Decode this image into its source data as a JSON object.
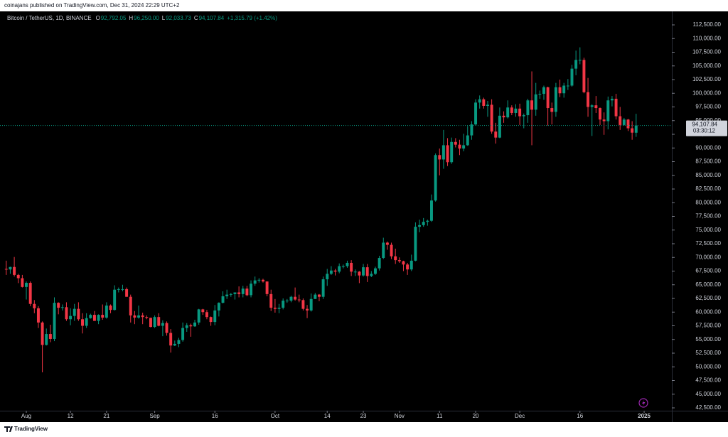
{
  "publisher": "coinajans published on TradingView.com, Dec 31, 2024 22:29 UTC+2",
  "legend": {
    "symbol": "Bitcoin / TetherUS, 1D, BINANCE",
    "items": [
      {
        "key": "O",
        "text": "92,792.05"
      },
      {
        "key": "H",
        "text": "96,250.00"
      },
      {
        "key": "L",
        "text": "92,033.73"
      },
      {
        "key": "C",
        "text": "94,107.84"
      }
    ],
    "change": "+1,315.79 (+1.42%)"
  },
  "footer": "TradingView",
  "chart_data": {
    "type": "candlestick",
    "up_color": "#089981",
    "down_color": "#f23645",
    "open": [
      67900,
      67800,
      68250,
      66800,
      66200,
      64600,
      65350,
      61500,
      60700,
      58100,
      54000,
      56000,
      55100,
      61700,
      60800,
      60900,
      58700,
      59300,
      60600,
      58700,
      57500,
      58900,
      59500,
      58400,
      59500,
      59000,
      61200,
      60400,
      64100,
      64200,
      64200,
      62800,
      59400,
      59000,
      59400,
      59100,
      58950,
      57300,
      59100,
      57500,
      58000,
      56200,
      53900,
      54200,
      54900,
      57100,
      57600,
      57400,
      58100,
      60500,
      60000,
      59100,
      58200,
      60300,
      61700,
      62900,
      63200,
      63300,
      63600,
      63300,
      64300,
      63100,
      65200,
      65800,
      65900,
      65600,
      63300,
      60800,
      60600,
      60800,
      62100,
      62100,
      62800,
      62300,
      62200,
      60600,
      60300,
      62400,
      63200,
      62800,
      66000,
      67000,
      67600,
      67400,
      68400,
      68400,
      69000,
      67400,
      67400,
      66700,
      68200,
      66600,
      67000,
      68000,
      69900,
      72700,
      72300,
      70200,
      69500,
      69300,
      68700,
      67800,
      69400,
      75600,
      75900,
      76500,
      76700,
      80400,
      88700,
      87900,
      90500,
      87400,
      91100,
      90600,
      89900,
      90500,
      92300,
      94300,
      98300,
      98900,
      97700,
      97900,
      93000,
      91900,
      95900,
      95600,
      97400,
      96400,
      97200,
      95800,
      96000,
      98700,
      97000,
      99800,
      99900,
      101100,
      97300,
      96600,
      101100,
      100000,
      101400,
      101400,
      104500,
      106100,
      106100,
      100200,
      97500,
      97800,
      97300,
      95200,
      94900,
      98700,
      99000,
      95800,
      94200,
      95200,
      93600,
      92792.05
    ],
    "high": [
      69400,
      68300,
      70080,
      67000,
      66800,
      65600,
      65600,
      62200,
      61100,
      58300,
      57000,
      57700,
      62700,
      61800,
      61400,
      61800,
      60700,
      61500,
      61800,
      59800,
      59800,
      59700,
      60200,
      59600,
      61400,
      61800,
      61400,
      64900,
      64500,
      65000,
      64500,
      63200,
      60200,
      61200,
      59900,
      59400,
      59000,
      59400,
      59800,
      58500,
      58300,
      56900,
      54800,
      55300,
      58100,
      58000,
      57900,
      58600,
      60600,
      60600,
      60400,
      59200,
      61300,
      61800,
      63800,
      64100,
      63500,
      63600,
      64700,
      64800,
      64800,
      65800,
      66500,
      66200,
      66100,
      65600,
      64100,
      62400,
      61500,
      62500,
      62400,
      63000,
      64500,
      63200,
      62500,
      61300,
      63400,
      63500,
      63300,
      66500,
      67900,
      68400,
      67900,
      68900,
      68700,
      69400,
      69500,
      67800,
      67500,
      68800,
      68800,
      67500,
      68300,
      70300,
      73600,
      72900,
      72700,
      71600,
      70000,
      69400,
      69000,
      70500,
      76400,
      76900,
      77200,
      76900,
      81500,
      89000,
      89900,
      93300,
      91800,
      91900,
      91800,
      91500,
      92600,
      94000,
      94900,
      98900,
      99600,
      99200,
      98600,
      98900,
      94600,
      97400,
      96700,
      98700,
      97800,
      98000,
      98100,
      96300,
      99000,
      104000,
      101900,
      100500,
      101400,
      101200,
      98300,
      101900,
      102500,
      101900,
      102600,
      105200,
      107800,
      108400,
      106500,
      102800,
      98000,
      99500,
      97400,
      96500,
      99400,
      99500,
      99900,
      97500,
      95500,
      95300,
      94900,
      96250
    ],
    "low": [
      66800,
      67000,
      66500,
      65300,
      64500,
      62300,
      61100,
      59800,
      57100,
      49000,
      53900,
      54500,
      54700,
      59600,
      60300,
      58400,
      57600,
      58400,
      58400,
      56100,
      57100,
      58800,
      58400,
      57800,
      58600,
      58800,
      59800,
      60300,
      63600,
      63800,
      62800,
      58100,
      57800,
      58800,
      57800,
      58700,
      57200,
      57100,
      57400,
      55600,
      55700,
      52600,
      53800,
      53600,
      54600,
      56400,
      55500,
      57300,
      57700,
      59500,
      58700,
      57500,
      57600,
      59200,
      61600,
      62400,
      62800,
      62300,
      62700,
      62700,
      62900,
      62700,
      64800,
      65400,
      65400,
      62900,
      60200,
      59900,
      59800,
      60500,
      61700,
      61800,
      62100,
      61800,
      60300,
      58900,
      60100,
      62400,
      62000,
      62400,
      64800,
      66800,
      66700,
      67100,
      68000,
      68100,
      66600,
      66600,
      65300,
      66500,
      65500,
      66400,
      66800,
      67600,
      69700,
      71400,
      69700,
      68800,
      69000,
      67500,
      66800,
      67500,
      69300,
      74600,
      75600,
      75800,
      76500,
      80200,
      85000,
      86200,
      86700,
      87100,
      90100,
      88700,
      89400,
      90400,
      91500,
      94100,
      97200,
      97200,
      95700,
      92600,
      90800,
      91800,
      94600,
      95400,
      96000,
      95700,
      94200,
      93600,
      94600,
      90500,
      95900,
      99000,
      98800,
      94100,
      94300,
      95700,
      99300,
      99200,
      100600,
      101200,
      103300,
      105300,
      100000,
      95700,
      92200,
      96400,
      94200,
      92400,
      93400,
      97600,
      95200,
      93300,
      94100,
      93100,
      91500,
      92033.73
    ],
    "close": [
      67800,
      68250,
      66800,
      66200,
      64600,
      65350,
      61500,
      60700,
      58100,
      54000,
      56000,
      55100,
      61700,
      60800,
      60900,
      58700,
      59300,
      60600,
      58700,
      57500,
      58900,
      59500,
      58400,
      59500,
      59000,
      61200,
      60400,
      64100,
      64200,
      64200,
      62800,
      59400,
      59000,
      59400,
      59100,
      58950,
      57300,
      59100,
      57500,
      58000,
      56200,
      53900,
      54200,
      54900,
      57100,
      57600,
      57400,
      58100,
      60500,
      60000,
      59100,
      58200,
      60300,
      61700,
      62900,
      63200,
      63300,
      63600,
      63300,
      64300,
      63100,
      65200,
      65800,
      65900,
      65600,
      63300,
      60800,
      60600,
      60800,
      62100,
      62100,
      62800,
      62300,
      62200,
      60600,
      60300,
      62400,
      63200,
      62800,
      66000,
      67000,
      67600,
      67400,
      68400,
      68400,
      69000,
      67400,
      67400,
      66700,
      68200,
      66600,
      67000,
      68000,
      69900,
      72700,
      72300,
      70200,
      69500,
      69300,
      68700,
      67800,
      69400,
      75600,
      75900,
      76500,
      76700,
      80400,
      88700,
      87900,
      90500,
      87400,
      91100,
      90600,
      89900,
      90500,
      92300,
      94300,
      98300,
      98900,
      97700,
      97900,
      93000,
      91900,
      95900,
      95600,
      97400,
      96400,
      97200,
      95800,
      96000,
      98700,
      97000,
      99800,
      99900,
      101100,
      97300,
      96600,
      101100,
      100000,
      101400,
      101400,
      104500,
      106100,
      106100,
      100200,
      97500,
      97800,
      97300,
      95200,
      94900,
      98700,
      99000,
      95800,
      94200,
      95200,
      93600,
      92800,
      94107.84
    ],
    "xlim": [
      -1.56,
      165.9
    ],
    "xticks": [
      {
        "value": 5,
        "label": "Aug"
      },
      {
        "value": 16,
        "label": "12"
      },
      {
        "value": 25,
        "label": "21"
      },
      {
        "value": 37,
        "label": "Sep"
      },
      {
        "value": 52,
        "label": "16"
      },
      {
        "value": 67,
        "label": "Oct"
      },
      {
        "value": 80,
        "label": "14"
      },
      {
        "value": 89,
        "label": "23"
      },
      {
        "value": 98,
        "label": "Nov"
      },
      {
        "value": 108,
        "label": "11"
      },
      {
        "value": 117,
        "label": "20"
      },
      {
        "value": 128,
        "label": "Dec"
      },
      {
        "value": 143,
        "label": "16"
      },
      {
        "value": 159,
        "label": "2025"
      }
    ],
    "ylim": [
      41980,
      114970
    ],
    "yticks": [
      {
        "value": 42500,
        "label": "42,500.00"
      },
      {
        "value": 45000,
        "label": "45,000.00"
      },
      {
        "value": 47500,
        "label": "47,500.00"
      },
      {
        "value": 50000,
        "label": "50,000.00"
      },
      {
        "value": 52500,
        "label": "52,500.00"
      },
      {
        "value": 55000,
        "label": "55,000.00"
      },
      {
        "value": 57500,
        "label": "57,500.00"
      },
      {
        "value": 60000,
        "label": "60,000.00"
      },
      {
        "value": 62500,
        "label": "62,500.00"
      },
      {
        "value": 65000,
        "label": "65,000.00"
      },
      {
        "value": 67500,
        "label": "67,500.00"
      },
      {
        "value": 70000,
        "label": "70,000.00"
      },
      {
        "value": 72500,
        "label": "72,500.00"
      },
      {
        "value": 75000,
        "label": "75,000.00"
      },
      {
        "value": 77500,
        "label": "77,500.00"
      },
      {
        "value": 80000,
        "label": "80,000.00"
      },
      {
        "value": 82500,
        "label": "82,500.00"
      },
      {
        "value": 85000,
        "label": "85,000.00"
      },
      {
        "value": 87500,
        "label": "87,500.00"
      },
      {
        "value": 90000,
        "label": "90,000.00"
      },
      {
        "value": 92500,
        "label": "92,500.00"
      },
      {
        "value": 95000,
        "label": "95,000.00"
      },
      {
        "value": 97500,
        "label": "97,500.00"
      },
      {
        "value": 100000,
        "label": "100,000.00"
      },
      {
        "value": 102500,
        "label": "102,500.00"
      },
      {
        "value": 105000,
        "label": "105,000.00"
      },
      {
        "value": 107500,
        "label": "107,500.00"
      },
      {
        "value": 110000,
        "label": "110,000.00"
      },
      {
        "value": 112500,
        "label": "112,500.00"
      }
    ],
    "last_price": {
      "value": 94107.84,
      "label": "94,107.84"
    },
    "countdown": "03:30:12"
  }
}
